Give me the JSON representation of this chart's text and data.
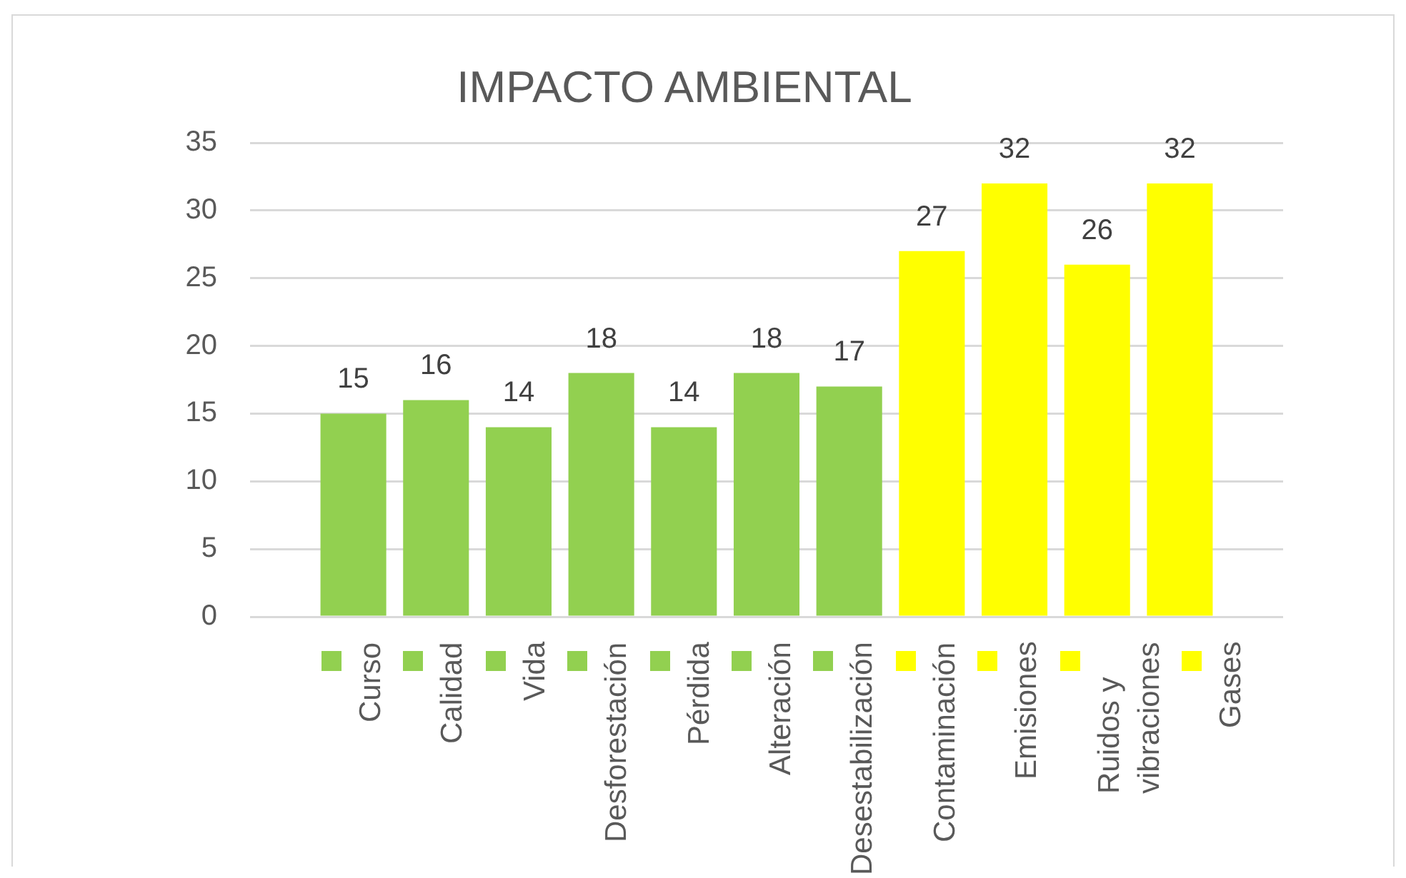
{
  "chart_data": {
    "type": "bar",
    "title": "IMPACTO AMBIENTAL",
    "categories": [
      null
    ],
    "series": [
      {
        "name": "Curso",
        "color": "#92d050",
        "values": [
          15
        ]
      },
      {
        "name": "Calidad",
        "color": "#92d050",
        "values": [
          16
        ]
      },
      {
        "name": "Vida",
        "color": "#92d050",
        "values": [
          14
        ]
      },
      {
        "name": "Desforestación",
        "color": "#92d050",
        "values": [
          18
        ]
      },
      {
        "name": "Pérdida",
        "color": "#92d050",
        "values": [
          14
        ]
      },
      {
        "name": "Alteración",
        "color": "#92d050",
        "values": [
          18
        ]
      },
      {
        "name": "Desestabilización",
        "color": "#92d050",
        "values": [
          17
        ]
      },
      {
        "name": "Contaminación",
        "color": "#ffff00",
        "values": [
          27
        ]
      },
      {
        "name": "Emisiones",
        "color": "#ffff00",
        "values": [
          32
        ]
      },
      {
        "name": "Ruidos y vibraciones",
        "color": "#ffff00",
        "values": [
          26
        ]
      },
      {
        "name": "Gases",
        "color": "#ffff00",
        "values": [
          32
        ]
      }
    ],
    "ylim": [
      0,
      35
    ],
    "yticks": [
      0,
      5,
      10,
      15,
      20,
      25,
      30,
      35
    ],
    "grid": "y",
    "legend": "bottom",
    "data_labels": true
  }
}
